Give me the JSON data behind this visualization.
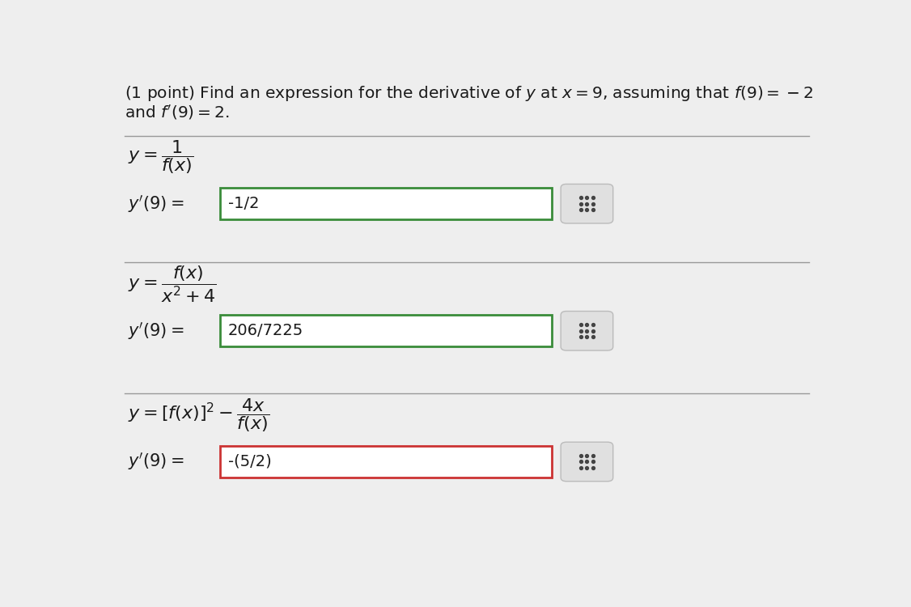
{
  "background_color": "#eeeeee",
  "title_line1": "(1 point) Find an expression for the derivative of $y$ at $x = 9$, assuming that $f(9) = -2$",
  "title_line2": "and $f^{\\prime}(9) = 2$.",
  "sections": [
    {
      "formula_parts": [
        "$y = \\dfrac{1}{f(x)}$"
      ],
      "answer_label": "$y^{\\prime}(9) = $",
      "answer_value": "-1/2",
      "box_border_color": "#3a8c3a",
      "correct": true
    },
    {
      "formula_parts": [
        "$y = \\dfrac{f(x)}{x^2 + 4}$"
      ],
      "answer_label": "$y^{\\prime}(9) = $",
      "answer_value": "206/7225",
      "box_border_color": "#3a8c3a",
      "correct": true
    },
    {
      "formula_parts": [
        "$y = [f(x)]^2 - \\dfrac{4x}{f(x)}$"
      ],
      "answer_label": "$y^{\\prime}(9) = $",
      "answer_value": "-(5/2)",
      "box_border_color": "#cc3333",
      "correct": false
    }
  ],
  "text_color": "#1a1a1a",
  "line_color": "#999999",
  "font_size_title": 14.5,
  "font_size_formula": 16,
  "font_size_answer_label": 15,
  "font_size_box_text": 14,
  "grid_icon_color": "#444444",
  "grid_icon_bg": "#e0e0e0"
}
